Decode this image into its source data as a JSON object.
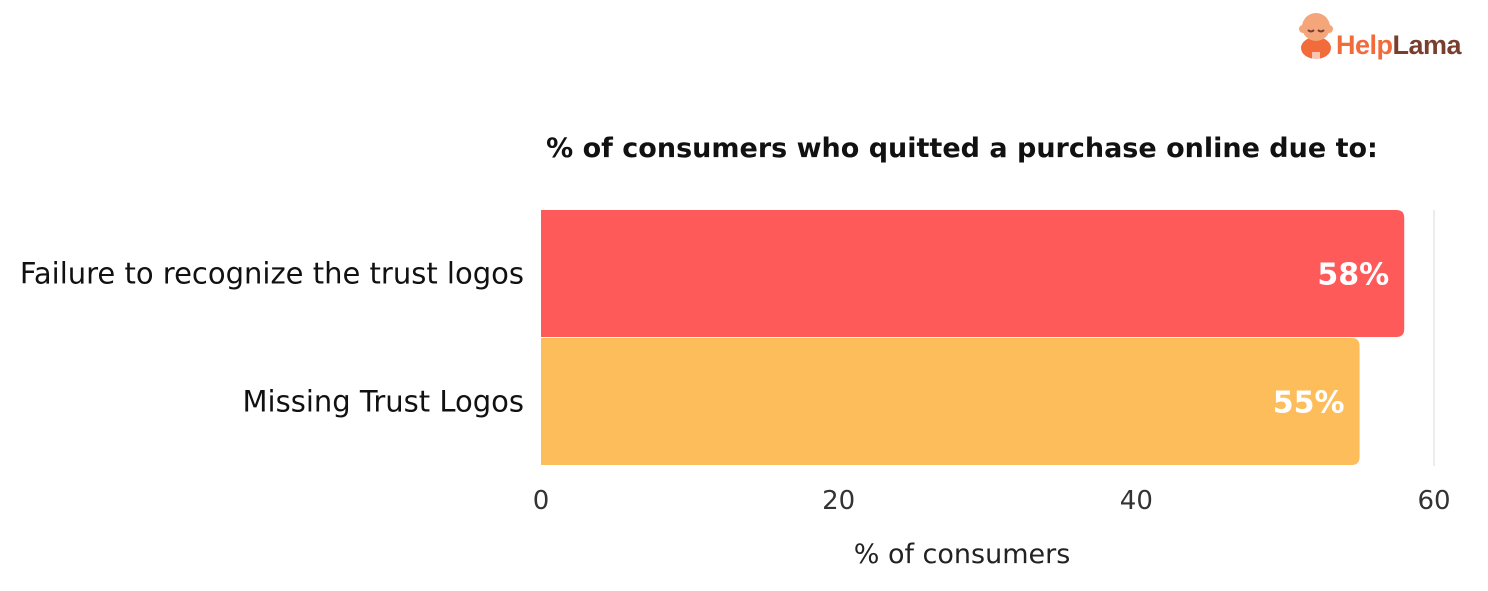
{
  "brand": {
    "name_part1": "Help",
    "name_part2": "Lama",
    "colors": {
      "primary": "#f26b3a",
      "secondary": "#7a3e2e"
    }
  },
  "chart_data": {
    "type": "bar",
    "orientation": "horizontal",
    "title": "% of consumers who quitted a purchase online due to:",
    "xlabel": "% of consumers",
    "ylabel": "",
    "categories": [
      "Failure to recognize the trust logos",
      "Missing Trust Logos"
    ],
    "values": [
      58,
      55
    ],
    "data_labels": [
      "58%",
      "55%"
    ],
    "colors": [
      "#ff5a5a",
      "#fdbd5a"
    ],
    "xlim": [
      0,
      60
    ],
    "xticks": [
      0,
      20,
      40,
      60
    ],
    "grid": false,
    "legend": "none"
  }
}
